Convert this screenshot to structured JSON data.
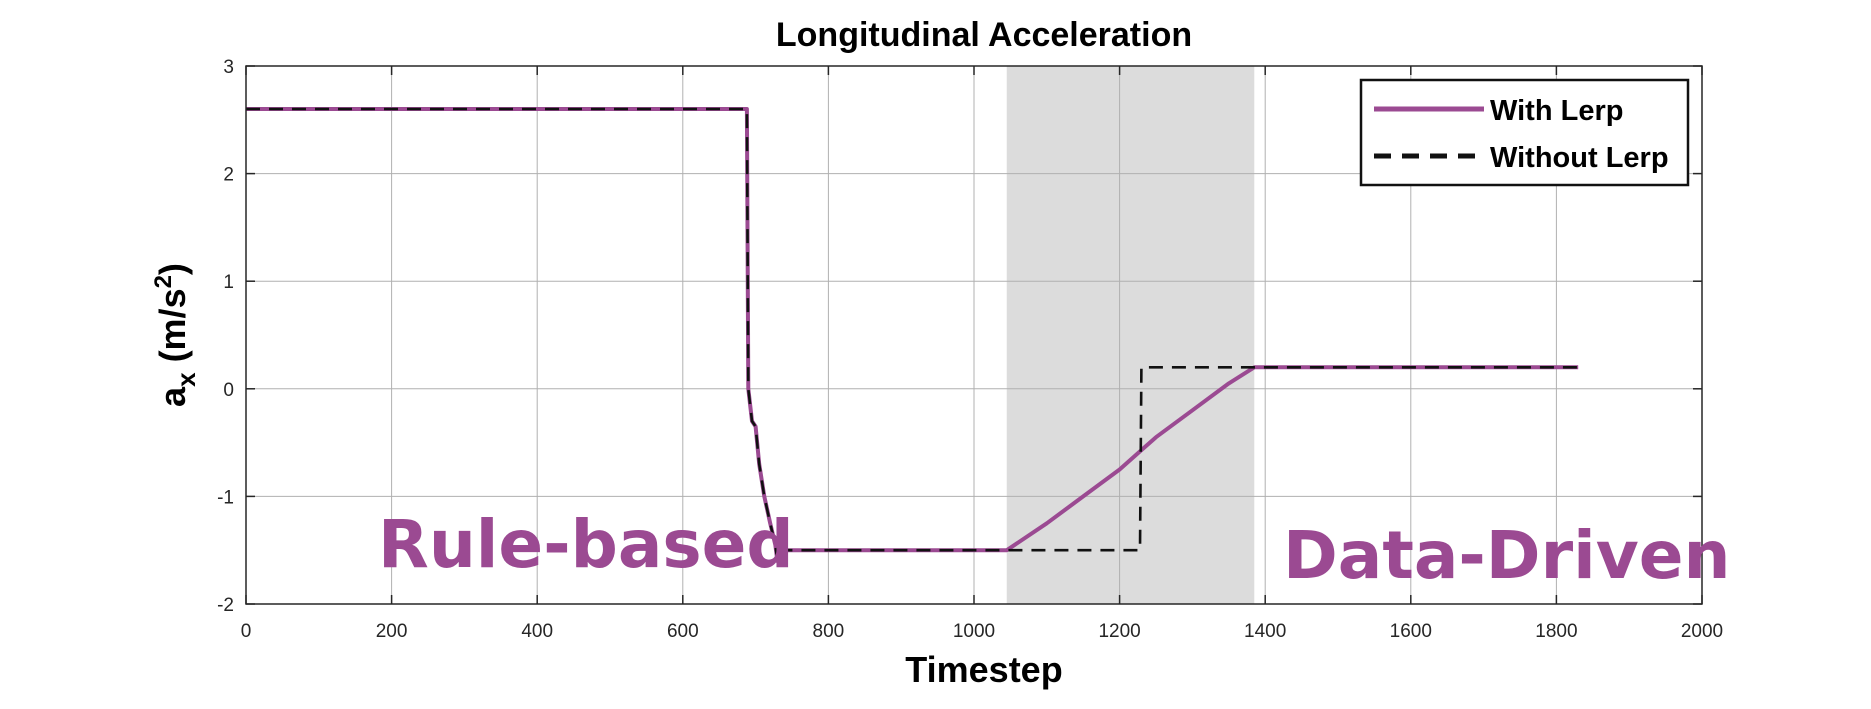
{
  "chart_data": {
    "type": "line",
    "title": "Longitudinal Acceleration",
    "xlabel": "Timestep",
    "ylabel_main": "a",
    "ylabel_sub": "x",
    "ylabel_unit_open": " (m/s",
    "ylabel_unit_sup": "2",
    "ylabel_unit_close": ")",
    "xlim": [
      0,
      2000
    ],
    "ylim": [
      -2,
      3
    ],
    "xticks": [
      0,
      200,
      400,
      600,
      800,
      1000,
      1200,
      1400,
      1600,
      1800,
      2000
    ],
    "yticks": [
      -2,
      -1,
      0,
      1,
      2,
      3
    ],
    "grid": true,
    "legend_position": "top-right",
    "shaded_region": {
      "x": [
        1045,
        1385
      ]
    },
    "annotations": [
      {
        "text": "Rule-based",
        "color": "#9b4a92"
      },
      {
        "text": "Data-Driven",
        "color": "#9b4a92"
      }
    ],
    "series": [
      {
        "name": "With Lerp",
        "color": "#9b4a92",
        "style": "solid",
        "x": [
          0,
          688,
          690,
          695,
          700,
          705,
          712,
          720,
          727,
          730,
          733,
          737,
          1045,
          1100,
          1150,
          1200,
          1250,
          1300,
          1350,
          1385,
          1830
        ],
        "y": [
          2.6,
          2.6,
          0.0,
          -0.3,
          -0.35,
          -0.7,
          -1.0,
          -1.25,
          -1.45,
          -1.6,
          -1.5,
          -1.5,
          -1.5,
          -1.25,
          -1.0,
          -0.75,
          -0.45,
          -0.2,
          0.05,
          0.2,
          0.2
        ]
      },
      {
        "name": "Without Lerp",
        "color": "#111111",
        "style": "dashed",
        "x": [
          0,
          688,
          690,
          695,
          700,
          705,
          712,
          720,
          727,
          730,
          733,
          737,
          1228,
          1230,
          1830
        ],
        "y": [
          2.6,
          2.6,
          0.0,
          -0.3,
          -0.35,
          -0.7,
          -1.0,
          -1.25,
          -1.45,
          -1.6,
          -1.5,
          -1.5,
          -1.5,
          0.2,
          0.2
        ]
      }
    ]
  }
}
